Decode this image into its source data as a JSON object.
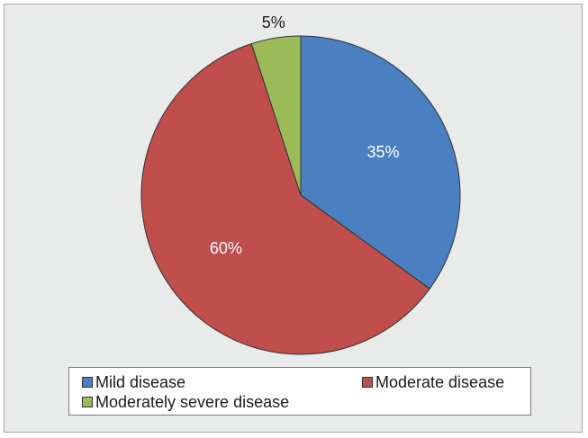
{
  "chart_data": {
    "type": "pie",
    "title": "",
    "slices": [
      {
        "label": "Mild disease",
        "value": 35,
        "display": "35%",
        "color": "#4a7fc1"
      },
      {
        "label": "Moderate disease",
        "value": 60,
        "display": "60%",
        "color": "#bf4e4c"
      },
      {
        "label": "Moderately severe disease",
        "value": 5,
        "display": "5%",
        "color": "#9bbb59"
      }
    ],
    "legend": {
      "position": "bottom",
      "items": [
        "Mild disease",
        "Moderate disease",
        "Moderately severe disease"
      ]
    },
    "label_colors": {
      "inside": "#ffffff",
      "outside": "#1a1a1a"
    }
  }
}
